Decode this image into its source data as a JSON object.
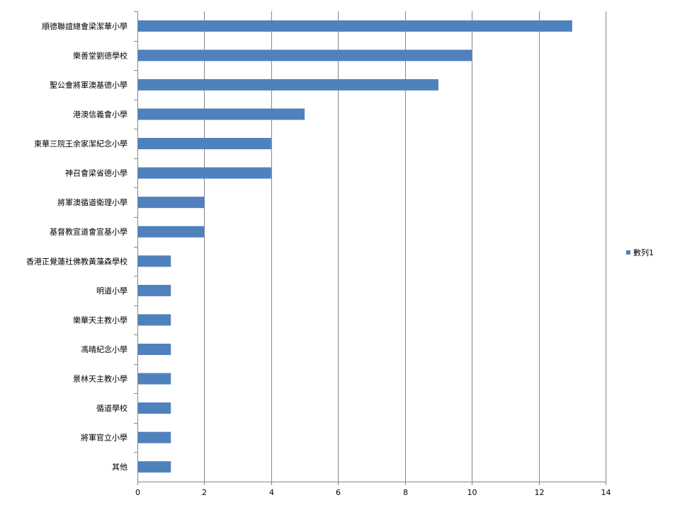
{
  "chart_data": {
    "type": "bar",
    "orientation": "horizontal",
    "title": "",
    "xlabel": "",
    "ylabel": "",
    "categories": [
      "順德聯誼總會梁潔華小學",
      "樂善堂劉德學校",
      "聖公會將軍澳基德小學",
      "港澳信義會小學",
      "東華三院王余家潔紀念小學",
      "神召會梁省德小學",
      "將軍澳循道衛理小學",
      "基督教宣道會宣基小學",
      "香港正覺蓮社佛教黃藻森學校",
      "明道小學",
      "樂華天主教小學",
      "馮晴紀念小學",
      "景林天主教小學",
      "循道學校",
      "將軍官立小學",
      "其他"
    ],
    "series": [
      {
        "name": "數列1",
        "values": [
          13,
          10,
          9,
          5,
          4,
          4,
          2,
          2,
          1,
          1,
          1,
          1,
          1,
          1,
          1,
          1
        ],
        "color": "#4F81BD"
      }
    ],
    "xlim": [
      0,
      14
    ],
    "xticks": [
      0,
      2,
      4,
      6,
      8,
      10,
      12,
      14
    ],
    "grid": true,
    "legend": "right"
  }
}
